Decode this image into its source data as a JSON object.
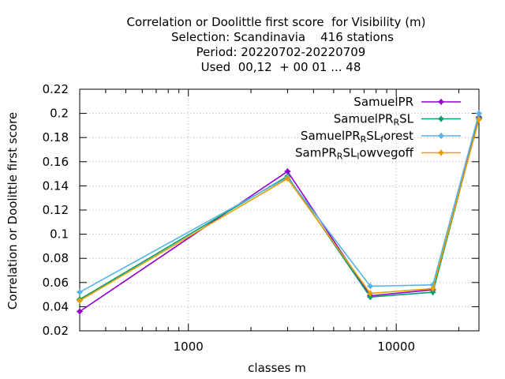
{
  "chart_data": {
    "type": "line",
    "title_lines": [
      "Correlation or Doolittle first score  for Visibility (m)",
      "Selection: Scandinavia    416 stations",
      "Period: 20220702-20220709",
      "Used  00,12  + 00 01 ... 48"
    ],
    "xlabel": "classes m",
    "ylabel": "Correlation or Doolittle first score",
    "x_scale": "log",
    "xlim": [
      300,
      25000
    ],
    "ylim": [
      0.02,
      0.22
    ],
    "x_ticks": [
      {
        "value": 1000,
        "label": "1000"
      },
      {
        "value": 10000,
        "label": "10000"
      }
    ],
    "y_ticks": [
      {
        "value": 0.02,
        "label": "0.02"
      },
      {
        "value": 0.04,
        "label": "0.04"
      },
      {
        "value": 0.06,
        "label": "0.06"
      },
      {
        "value": 0.08,
        "label": "0.08"
      },
      {
        "value": 0.1,
        "label": "0.1"
      },
      {
        "value": 0.12,
        "label": "0.12"
      },
      {
        "value": 0.14,
        "label": "0.14"
      },
      {
        "value": 0.16,
        "label": "0.16"
      },
      {
        "value": 0.18,
        "label": "0.18"
      },
      {
        "value": 0.2,
        "label": "0.2"
      },
      {
        "value": 0.22,
        "label": "0.22"
      }
    ],
    "grid": true,
    "legend_position": "top-right",
    "x": [
      300,
      3000,
      7500,
      15000,
      25000
    ],
    "series": [
      {
        "name": "SamuelPR",
        "name_parts": [
          [
            "SamuelPR",
            ""
          ]
        ],
        "color": "#9400d3",
        "values": [
          0.036,
          0.152,
          0.049,
          0.054,
          0.197
        ]
      },
      {
        "name": "SamuelPR_RSL",
        "name_parts": [
          [
            "SamuelPR",
            ""
          ],
          [
            "R",
            "sub"
          ],
          [
            "SL",
            ""
          ]
        ],
        "color": "#009e73",
        "values": [
          0.046,
          0.148,
          0.048,
          0.052,
          0.196
        ]
      },
      {
        "name": "SamuelPR_RSL_forest",
        "name_parts": [
          [
            "SamuelPR",
            ""
          ],
          [
            "R",
            "sub"
          ],
          [
            "SL",
            ""
          ],
          [
            "f",
            "sub"
          ],
          [
            "orest",
            ""
          ]
        ],
        "color": "#56b4e9",
        "values": [
          0.052,
          0.147,
          0.057,
          0.058,
          0.2
        ]
      },
      {
        "name": "SamPR_RSL_lowvegoff",
        "name_parts": [
          [
            "SamPR",
            ""
          ],
          [
            "R",
            "sub"
          ],
          [
            "SL",
            ""
          ],
          [
            "l",
            "sub"
          ],
          [
            "owvegoff",
            ""
          ]
        ],
        "color": "#e69f00",
        "values": [
          0.045,
          0.146,
          0.051,
          0.055,
          0.195
        ]
      }
    ]
  }
}
